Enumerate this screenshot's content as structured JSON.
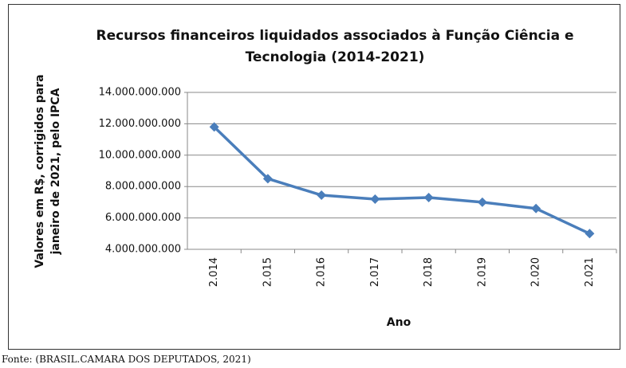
{
  "chart_data": {
    "type": "line",
    "title": "Recursos financeiros liquidados associados à Função Ciência e Tecnologia (2014-2021)",
    "y_label": "Valores em R$, corrigidos para janeiro de 2021, pelo IPCA",
    "x_label": "Ano",
    "source": "Fonte: (BRASIL.CAMARA DOS DEPUTADOS, 2021)",
    "categories": [
      "2.014",
      "2.015",
      "2.016",
      "2.017",
      "2.018",
      "2.019",
      "2.020",
      "2.021"
    ],
    "series": [
      {
        "color": "#4a7ebb",
        "values": [
          11800000000,
          8500000000,
          7450000000,
          7200000000,
          7300000000,
          7000000000,
          6600000000,
          5000000000
        ]
      }
    ],
    "ylim": [
      4000000000,
      14000000000
    ],
    "yticks": [
      {
        "value": 4000000000,
        "label": "4.000.000.000"
      },
      {
        "value": 6000000000,
        "label": "6.000.000.000"
      },
      {
        "value": 8000000000,
        "label": "8.000.000.000"
      },
      {
        "value": 10000000000,
        "label": "10.000.000.000"
      },
      {
        "value": 12000000000,
        "label": "12.000.000.000"
      },
      {
        "value": 14000000000,
        "label": "14.000.000.000"
      }
    ],
    "grid": true
  }
}
